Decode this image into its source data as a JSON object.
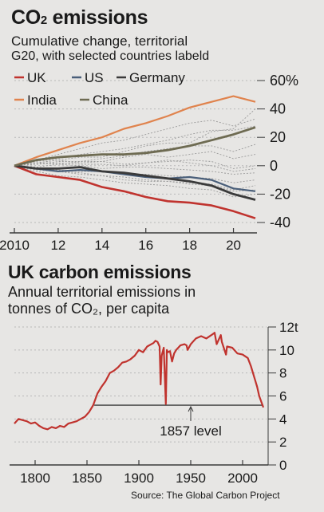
{
  "header": {
    "title_main": "CO",
    "title_sub": "2",
    "title_rest": " emissions",
    "subtitle_line1": "Cumulative change, territorial",
    "subtitle_line2": "G20, with selected countries labeld"
  },
  "uk_header": {
    "title": "UK carbon emissions",
    "subtitle_line1": "Annual territorial emissions in",
    "subtitle_line2": "tonnes of CO₂, per capita"
  },
  "source": "Source: The Global Carbon Project",
  "colors": {
    "uk": "#c0332e",
    "us": "#4a5f7a",
    "germany": "#3a3a3a",
    "india": "#e0834d",
    "china": "#6e6b52",
    "other": "#9a9a9a",
    "grid": "#b9b9b9",
    "axis": "#3a3a3a"
  },
  "chart_data": [
    {
      "type": "line",
      "x": [
        2010,
        2011,
        2012,
        2013,
        2014,
        2015,
        2016,
        2017,
        2018,
        2019,
        2020,
        2021
      ],
      "x_tick_labels": [
        "2010",
        "12",
        "14",
        "16",
        "18",
        "20"
      ],
      "x_ticks": [
        2010,
        2012,
        2014,
        2016,
        2018,
        2020
      ],
      "y_ticks": [
        -40,
        -20,
        0,
        20,
        40,
        60
      ],
      "y_tick_labels": [
        "-40",
        "-20",
        "0",
        "20",
        "40",
        "60%"
      ],
      "ylim": [
        -40,
        60
      ],
      "xlim": [
        2010,
        2021
      ],
      "grid": true,
      "legend": "top-left",
      "series": [
        {
          "name": "UK",
          "color_key": "uk",
          "values": [
            0,
            -6,
            -8,
            -10,
            -15,
            -18,
            -22,
            -25,
            -26,
            -28,
            -32,
            -37
          ]
        },
        {
          "name": "US",
          "color_key": "us",
          "values": [
            0,
            -2,
            -4,
            -3,
            -4,
            -6,
            -8,
            -9,
            -8,
            -10,
            -16,
            -18
          ]
        },
        {
          "name": "Germany",
          "color_key": "germany",
          "values": [
            0,
            -2,
            -2,
            -1,
            -4,
            -5,
            -7,
            -9,
            -11,
            -14,
            -20,
            -24
          ]
        },
        {
          "name": "India",
          "color_key": "india",
          "values": [
            0,
            6,
            11,
            16,
            20,
            26,
            30,
            35,
            41,
            45,
            49,
            45
          ]
        },
        {
          "name": "China",
          "color_key": "china",
          "values": [
            0,
            4,
            6,
            7,
            8,
            8,
            9,
            11,
            14,
            18,
            22,
            27
          ]
        }
      ],
      "other_series": [
        [
          0,
          3,
          5,
          8,
          10,
          12,
          15,
          18,
          22,
          25,
          25,
          28
        ],
        [
          0,
          4,
          8,
          12,
          16,
          18,
          22,
          26,
          30,
          32,
          28,
          33
        ],
        [
          0,
          2,
          4,
          6,
          6,
          10,
          14,
          16,
          16,
          24,
          26,
          40
        ],
        [
          0,
          1,
          3,
          3,
          5,
          7,
          10,
          12,
          14,
          14,
          10,
          15
        ],
        [
          0,
          2,
          1,
          3,
          3,
          6,
          8,
          6,
          8,
          10,
          5,
          8
        ],
        [
          0,
          1,
          2,
          1,
          1,
          0,
          2,
          3,
          4,
          3,
          -2,
          0
        ],
        [
          0,
          -1,
          1,
          0,
          -2,
          -1,
          -1,
          -2,
          -3,
          -4,
          -6,
          -5
        ],
        [
          0,
          -2,
          -3,
          -4,
          -4,
          -6,
          -6,
          -7,
          -8,
          -9,
          -12,
          -10
        ],
        [
          0,
          -3,
          -4,
          -6,
          -7,
          -8,
          -10,
          -11,
          -12,
          -13,
          -17,
          -14
        ],
        [
          0,
          -4,
          -7,
          -8,
          -10,
          -12,
          -13,
          -14,
          -16,
          -17,
          -22,
          -20
        ],
        [
          0,
          -1,
          -4,
          -5,
          -7,
          -10,
          -11,
          -11,
          -13,
          -14,
          -18,
          -17
        ],
        [
          0,
          2,
          4,
          2,
          3,
          1,
          2,
          4,
          2,
          0,
          -4,
          -2
        ]
      ]
    },
    {
      "type": "line",
      "name": "UK carbon emissions",
      "xlim": [
        1780,
        2020
      ],
      "ylim": [
        0,
        12
      ],
      "x_ticks": [
        1800,
        1850,
        1900,
        1950,
        2000
      ],
      "x_tick_labels": [
        "1800",
        "1850",
        "1900",
        "1950",
        "2000"
      ],
      "y_ticks": [
        0,
        2,
        4,
        6,
        8,
        10,
        12
      ],
      "y_tick_labels": [
        "0",
        "2",
        "4",
        "6",
        "8",
        "10",
        "12t"
      ],
      "grid": true,
      "reference_line": {
        "value": 5.2,
        "from": 1857,
        "to": 2020,
        "label": "1857 level",
        "label_year": 1950
      },
      "series": [
        {
          "color_key": "uk",
          "x": [
            1780,
            1784,
            1788,
            1792,
            1796,
            1800,
            1804,
            1808,
            1812,
            1816,
            1820,
            1824,
            1828,
            1832,
            1836,
            1840,
            1844,
            1848,
            1852,
            1856,
            1860,
            1864,
            1868,
            1872,
            1876,
            1880,
            1884,
            1888,
            1892,
            1896,
            1900,
            1904,
            1908,
            1912,
            1914,
            1916,
            1918,
            1920,
            1921,
            1922,
            1924,
            1926,
            1927,
            1928,
            1930,
            1932,
            1934,
            1936,
            1938,
            1940,
            1944,
            1946,
            1947,
            1950,
            1952,
            1955,
            1960,
            1965,
            1970,
            1973,
            1975,
            1979,
            1980,
            1984,
            1985,
            1990,
            1995,
            2000,
            2005,
            2008,
            2010,
            2012,
            2014,
            2016,
            2018,
            2020
          ],
          "values": [
            3.6,
            4.0,
            3.9,
            3.8,
            3.6,
            3.7,
            3.4,
            3.2,
            3.1,
            3.3,
            3.2,
            3.4,
            3.3,
            3.6,
            3.7,
            3.8,
            4.0,
            4.2,
            4.6,
            5.2,
            6.2,
            6.8,
            7.3,
            8.0,
            8.2,
            8.5,
            8.9,
            9.0,
            9.2,
            9.5,
            10.0,
            9.8,
            10.3,
            10.5,
            10.6,
            10.8,
            10.7,
            10.3,
            7.0,
            9.5,
            10.2,
            5.3,
            10.0,
            9.8,
            9.9,
            9.0,
            9.7,
            10.0,
            10.2,
            10.4,
            10.5,
            10.4,
            10.0,
            10.5,
            10.7,
            11.0,
            11.2,
            11.0,
            11.3,
            11.5,
            10.5,
            11.3,
            10.7,
            9.6,
            10.3,
            10.2,
            9.7,
            9.6,
            9.3,
            8.6,
            8.0,
            7.4,
            6.8,
            6.0,
            5.5,
            5.0
          ]
        }
      ]
    }
  ]
}
